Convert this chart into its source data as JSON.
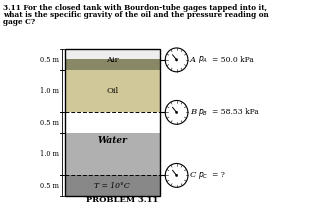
{
  "title_line1": "3.11 For the closed tank with Bourdon-tube gages tapped into it,",
  "title_line2": "what is the specific gravity of the oil and the pressure reading on",
  "title_line3": "gage C?",
  "problem_label": "PROBLEM 3.11",
  "air_label": "Air",
  "oil_label": "Oil",
  "water_label": "Water",
  "temp_label": "T = 10°C",
  "gage_A_label": "A",
  "gage_B_label": "B",
  "gage_C_label": "C",
  "PA_label": "P_A = 50.0 kPa",
  "PB_label": "P_B = 58.53 kPa",
  "PC_label": "P_C = ?",
  "dim_05_1": "0.5 m",
  "dim_10_1": "1.0 m",
  "dim_05_2": "0.5 m",
  "dim_10_2": "1.0 m",
  "dim_05_3": "0.5 m",
  "bg_color": "#ffffff",
  "air_fill": "#f0f0f0",
  "oil_hatch_fill": "#555555",
  "oil_fill": "#c8c0a0",
  "water_fill": "#a8a8a8",
  "bot_fill": "#909090"
}
